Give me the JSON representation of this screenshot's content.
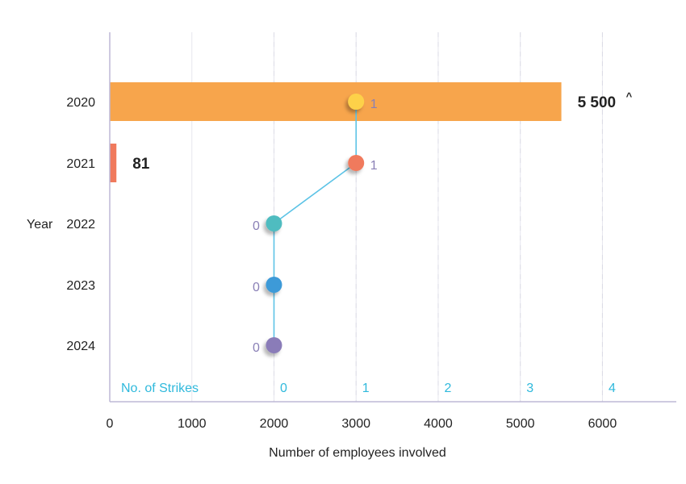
{
  "chart_data": {
    "type": "bar",
    "orientation": "horizontal",
    "categories": [
      "2020",
      "2021",
      "2022",
      "2023",
      "2024"
    ],
    "y_axis_label": "Year",
    "x_axis_label": "Number of employees involved",
    "x_ticks": [
      "0",
      "1000",
      "2000",
      "3000",
      "4000",
      "5000",
      "6000"
    ],
    "xlim": [
      0,
      6900
    ],
    "grid": true,
    "employees": {
      "values": [
        5500,
        81,
        null,
        null,
        null
      ],
      "labels": [
        "5 500",
        "81",
        "",
        "",
        ""
      ],
      "label_suffix": [
        "^",
        "",
        "",
        "",
        ""
      ],
      "colors": [
        "#f7a54c",
        "#f07a5d",
        null,
        null,
        null
      ]
    },
    "strikes": {
      "axis_label": "No. of Strikes",
      "ticks": [
        "0",
        "1",
        "2",
        "3",
        "4"
      ],
      "range": [
        0,
        4
      ],
      "values": [
        1,
        1,
        0,
        0,
        0
      ],
      "point_colors": [
        "#fdd14a",
        "#f07a5d",
        "#4fbcc0",
        "#3d9ad8",
        "#8a7cb8"
      ],
      "line_color": "#5cc3e6"
    }
  }
}
